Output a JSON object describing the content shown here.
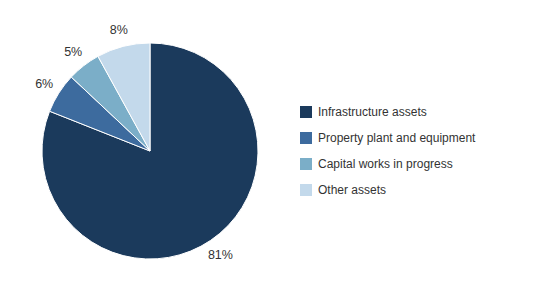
{
  "chart_data": {
    "type": "pie",
    "categories": [
      "Infrastructure assets",
      "Property plant and equipment",
      "Capital works in progress",
      "Other assets"
    ],
    "values": [
      81,
      6,
      5,
      8
    ],
    "value_labels": [
      "81%",
      "6%",
      "5%",
      "8%"
    ],
    "colors": [
      "#1b3a5c",
      "#3d6b9e",
      "#7baec8",
      "#c3d9eb"
    ],
    "data_labels": true,
    "legend": "right"
  }
}
